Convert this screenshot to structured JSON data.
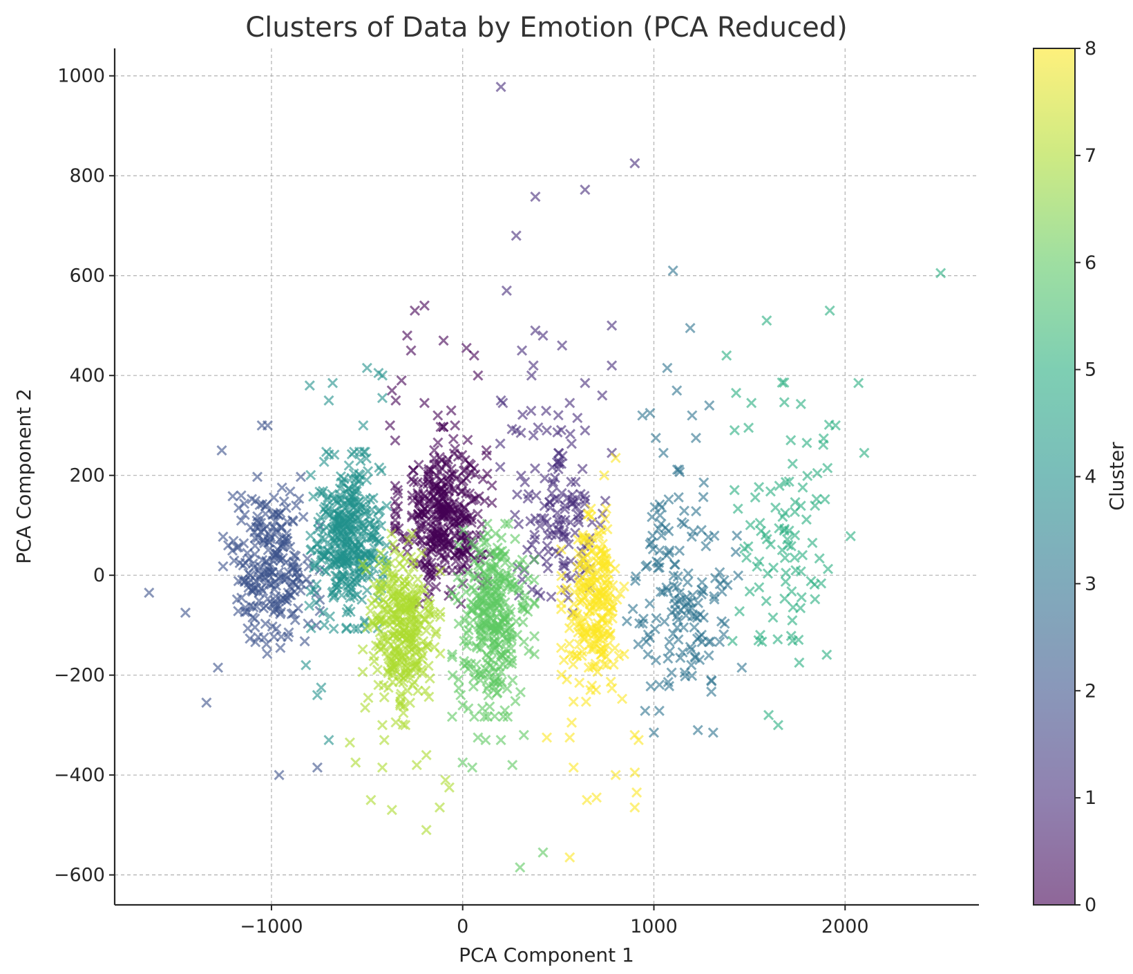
{
  "chart_data": {
    "type": "scatter",
    "title": "Clusters of Data by Emotion (PCA Reduced)",
    "xlabel": "PCA Component 1",
    "ylabel": "PCA Component 2",
    "xlim": [
      -1820,
      2700
    ],
    "ylim": [
      -660,
      1055
    ],
    "xticks": [
      -1000,
      0,
      1000,
      2000
    ],
    "xtick_labels": [
      "−1000",
      "0",
      "1000",
      "2000"
    ],
    "yticks": [
      -600,
      -400,
      -200,
      0,
      200,
      400,
      600,
      800,
      1000
    ],
    "ytick_labels": [
      "−600",
      "−400",
      "−200",
      "0",
      "200",
      "400",
      "600",
      "800",
      "1000"
    ],
    "grid": true,
    "marker": "x",
    "colormap": "viridis",
    "alpha": 0.6,
    "colorbar": {
      "label": "Cluster",
      "range": [
        0,
        8
      ],
      "ticks": [
        0,
        1,
        2,
        3,
        4,
        5,
        6,
        7,
        8
      ],
      "tick_labels": [
        "0",
        "1",
        "2",
        "3",
        "4",
        "5",
        "6",
        "7",
        "8"
      ],
      "colors": [
        "#440154",
        "#472d7b",
        "#3b528b",
        "#2c728e",
        "#21918c",
        "#28ae80",
        "#5ec962",
        "#addc30",
        "#fde725"
      ]
    },
    "clusters": [
      {
        "cluster": 0,
        "center": [
          -100,
          120
        ],
        "spread": [
          200,
          110
        ],
        "count": 340,
        "outliers": [
          [
            -320,
            390
          ],
          [
            -250,
            530
          ],
          [
            -200,
            540
          ],
          [
            -290,
            480
          ],
          [
            -270,
            450
          ],
          [
            -100,
            470
          ],
          [
            20,
            455
          ],
          [
            60,
            440
          ],
          [
            80,
            400
          ],
          [
            -370,
            370
          ],
          [
            -350,
            350
          ],
          [
            -380,
            300
          ],
          [
            -200,
            345
          ],
          [
            -130,
            320
          ],
          [
            -60,
            330
          ],
          [
            -40,
            300
          ]
        ]
      },
      {
        "cluster": 1,
        "center": [
          500,
          120
        ],
        "spread": [
          240,
          130
        ],
        "count": 130,
        "outliers": [
          [
            200,
            978
          ],
          [
            900,
            825
          ],
          [
            380,
            758
          ],
          [
            640,
            772
          ],
          [
            280,
            680
          ],
          [
            230,
            570
          ],
          [
            780,
            500
          ],
          [
            380,
            490
          ],
          [
            420,
            480
          ],
          [
            520,
            460
          ],
          [
            310,
            450
          ],
          [
            780,
            420
          ],
          [
            370,
            420
          ],
          [
            360,
            400
          ],
          [
            640,
            385
          ],
          [
            730,
            360
          ],
          [
            560,
            345
          ],
          [
            200,
            350
          ],
          [
            210,
            345
          ],
          [
            600,
            315
          ],
          [
            640,
            290
          ],
          [
            370,
            280
          ],
          [
            440,
            290
          ],
          [
            280,
            290
          ],
          [
            780,
            245
          ]
        ]
      },
      {
        "cluster": 2,
        "center": [
          -1000,
          20
        ],
        "spread": [
          200,
          110
        ],
        "count": 230,
        "outliers": [
          [
            -1640,
            -35
          ],
          [
            -1450,
            -75
          ],
          [
            -1340,
            -255
          ],
          [
            -1280,
            -185
          ],
          [
            -960,
            -400
          ],
          [
            -760,
            -385
          ],
          [
            -1260,
            250
          ],
          [
            -1020,
            300
          ],
          [
            -1050,
            300
          ]
        ]
      },
      {
        "cluster": 3,
        "center": [
          1150,
          -30
        ],
        "spread": [
          230,
          150
        ],
        "count": 150,
        "outliers": [
          [
            1100,
            610
          ],
          [
            1190,
            495
          ],
          [
            1070,
            415
          ],
          [
            1120,
            370
          ],
          [
            1290,
            340
          ],
          [
            1200,
            320
          ],
          [
            980,
            325
          ],
          [
            940,
            320
          ],
          [
            1010,
            275
          ],
          [
            1220,
            275
          ],
          [
            1050,
            245
          ],
          [
            1310,
            -315
          ],
          [
            1230,
            -310
          ],
          [
            1000,
            -315
          ],
          [
            1460,
            -185
          ]
        ]
      },
      {
        "cluster": 4,
        "center": [
          -600,
          70
        ],
        "spread": [
          160,
          110
        ],
        "count": 350,
        "outliers": [
          [
            -800,
            380
          ],
          [
            -680,
            385
          ],
          [
            -500,
            415
          ],
          [
            -440,
            405
          ],
          [
            -420,
            400
          ],
          [
            -420,
            355
          ],
          [
            -700,
            350
          ],
          [
            -520,
            300
          ],
          [
            -700,
            -330
          ],
          [
            -760,
            -240
          ],
          [
            -740,
            -225
          ],
          [
            -820,
            -180
          ]
        ]
      },
      {
        "cluster": 5,
        "center": [
          1700,
          80
        ],
        "spread": [
          260,
          190
        ],
        "count": 90,
        "outliers": [
          [
            2500,
            605
          ],
          [
            1920,
            530
          ],
          [
            1590,
            510
          ],
          [
            1380,
            440
          ],
          [
            2070,
            385
          ],
          [
            1430,
            365
          ],
          [
            1510,
            345
          ],
          [
            2100,
            245
          ],
          [
            1800,
            265
          ],
          [
            1950,
            300
          ],
          [
            1650,
            -300
          ],
          [
            1600,
            -280
          ],
          [
            1760,
            -175
          ]
        ]
      },
      {
        "cluster": 6,
        "center": [
          160,
          -90
        ],
        "spread": [
          170,
          120
        ],
        "count": 300,
        "outliers": [
          [
            300,
            -585
          ],
          [
            420,
            -555
          ],
          [
            50,
            -385
          ],
          [
            0,
            -375
          ],
          [
            120,
            -330
          ],
          [
            260,
            -380
          ],
          [
            320,
            -320
          ],
          [
            200,
            -330
          ],
          [
            80,
            -325
          ]
        ]
      },
      {
        "cluster": 7,
        "center": [
          -320,
          -110
        ],
        "spread": [
          160,
          120
        ],
        "count": 300,
        "outliers": [
          [
            -190,
            -510
          ],
          [
            -370,
            -470
          ],
          [
            -480,
            -450
          ],
          [
            -120,
            -465
          ],
          [
            -70,
            -425
          ],
          [
            -90,
            -410
          ],
          [
            -240,
            -380
          ],
          [
            -420,
            -385
          ],
          [
            -560,
            -375
          ],
          [
            -410,
            -330
          ],
          [
            -300,
            -300
          ],
          [
            -420,
            -300
          ],
          [
            -190,
            -360
          ],
          [
            -590,
            -335
          ],
          [
            -510,
            -265
          ]
        ]
      },
      {
        "cluster": 8,
        "center": [
          680,
          -60
        ],
        "spread": [
          130,
          120
        ],
        "count": 230,
        "outliers": [
          [
            560,
            -565
          ],
          [
            900,
            -465
          ],
          [
            650,
            -450
          ],
          [
            700,
            -445
          ],
          [
            910,
            -435
          ],
          [
            900,
            -395
          ],
          [
            800,
            -400
          ],
          [
            580,
            -385
          ],
          [
            440,
            -325
          ],
          [
            560,
            -325
          ],
          [
            900,
            -320
          ],
          [
            920,
            -330
          ],
          [
            570,
            -295
          ],
          [
            800,
            235
          ],
          [
            740,
            200
          ]
        ]
      }
    ]
  }
}
